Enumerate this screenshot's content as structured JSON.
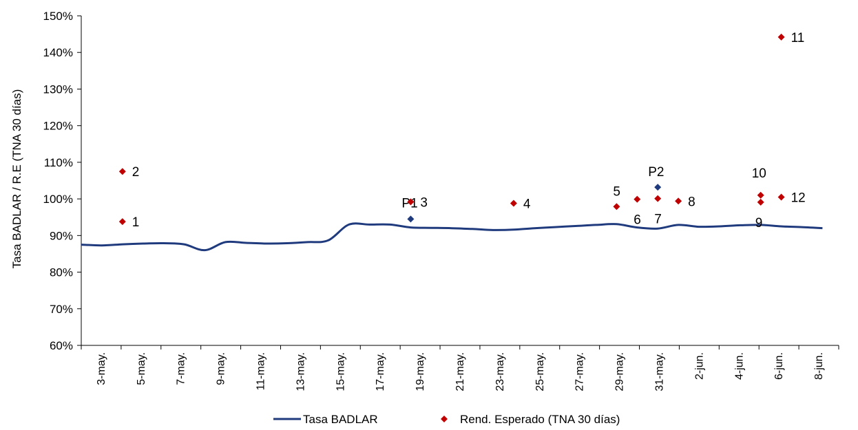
{
  "chart_data": {
    "type": "line",
    "ylabel": "Tasa BADLAR / R.E (TNA 30 días)",
    "y_ticks": [
      "60%",
      "70%",
      "80%",
      "90%",
      "100%",
      "110%",
      "120%",
      "130%",
      "140%",
      "150%"
    ],
    "ylim": [
      60,
      150
    ],
    "x_ticks": [
      "3-may.",
      "5-may.",
      "7-may.",
      "9-may.",
      "11-may.",
      "13-may.",
      "15-may.",
      "17-may.",
      "19-may.",
      "21-may.",
      "23-may.",
      "25-may.",
      "27-may.",
      "29-may.",
      "31-may.",
      "2-jun.",
      "4-jun.",
      "6-jun.",
      "8-jun."
    ],
    "x_range_days": [
      3,
      39
    ],
    "grid": false,
    "legend_position": "bottom",
    "series": [
      {
        "name": "Tasa BADLAR",
        "color": "#1f3a7d",
        "points": [
          {
            "x": "3-may.",
            "y": 87.5
          },
          {
            "x": "4-may.",
            "y": 87.3
          },
          {
            "x": "5-may.",
            "y": 87.6
          },
          {
            "x": "6-may.",
            "y": 87.8
          },
          {
            "x": "7-may.",
            "y": 87.9
          },
          {
            "x": "8-may.",
            "y": 87.6
          },
          {
            "x": "9-may.",
            "y": 86.0
          },
          {
            "x": "10-may.",
            "y": 88.2
          },
          {
            "x": "11-may.",
            "y": 88.0
          },
          {
            "x": "12-may.",
            "y": 87.8
          },
          {
            "x": "13-may.",
            "y": 87.9
          },
          {
            "x": "14-may.",
            "y": 88.2
          },
          {
            "x": "15-may.",
            "y": 88.7
          },
          {
            "x": "16-may.",
            "y": 93.0
          },
          {
            "x": "17-may.",
            "y": 93.0
          },
          {
            "x": "18-may.",
            "y": 93.0
          },
          {
            "x": "19-may.",
            "y": 92.2
          },
          {
            "x": "20-may.",
            "y": 92.1
          },
          {
            "x": "21-may.",
            "y": 92.0
          },
          {
            "x": "22-may.",
            "y": 91.8
          },
          {
            "x": "23-may.",
            "y": 91.5
          },
          {
            "x": "24-may.",
            "y": 91.6
          },
          {
            "x": "25-may.",
            "y": 92.0
          },
          {
            "x": "26-may.",
            "y": 92.3
          },
          {
            "x": "27-may.",
            "y": 92.6
          },
          {
            "x": "28-may.",
            "y": 92.9
          },
          {
            "x": "29-may.",
            "y": 93.1
          },
          {
            "x": "30-may.",
            "y": 92.2
          },
          {
            "x": "31-may.",
            "y": 91.9
          },
          {
            "x": "1-jun.",
            "y": 92.9
          },
          {
            "x": "2-jun.",
            "y": 92.4
          },
          {
            "x": "3-jun.",
            "y": 92.5
          },
          {
            "x": "4-jun.",
            "y": 92.8
          },
          {
            "x": "5-jun.",
            "y": 92.9
          },
          {
            "x": "6-jun.",
            "y": 92.5
          },
          {
            "x": "7-jun.",
            "y": 92.3
          },
          {
            "x": "8-jun.",
            "y": 92.0
          }
        ]
      },
      {
        "name": "Rend. Esperado (TNA 30 días)",
        "color": "#c00000",
        "points": [
          {
            "label": "1",
            "x": "5-may.",
            "y": 93.8
          },
          {
            "label": "2",
            "x": "5-may.",
            "y": 107.5
          },
          {
            "label": "3",
            "x": "19-may.",
            "y": 99.2
          },
          {
            "label": "4",
            "x": "24-may.",
            "y": 98.8
          },
          {
            "label": "5",
            "x": "29-may.",
            "y": 97.9
          },
          {
            "label": "6",
            "x": "30-may.",
            "y": 99.9
          },
          {
            "label": "7",
            "x": "31-may.",
            "y": 100.1
          },
          {
            "label": "8",
            "x": "1-jun.",
            "y": 99.4
          },
          {
            "label": "9",
            "x": "5-jun.",
            "y": 99.1
          },
          {
            "label": "10",
            "x": "5-jun.",
            "y": 101.0
          },
          {
            "label": "11",
            "x": "6-jun.",
            "y": 144.2
          },
          {
            "label": "12",
            "x": "6-jun.",
            "y": 100.5
          }
        ]
      },
      {
        "name": "",
        "color": "#1f3a7d",
        "points": [
          {
            "label": "P1",
            "x": "19-may.",
            "y": 94.5
          },
          {
            "label": "P2",
            "x": "31-may.",
            "y": 103.2
          }
        ]
      }
    ]
  }
}
